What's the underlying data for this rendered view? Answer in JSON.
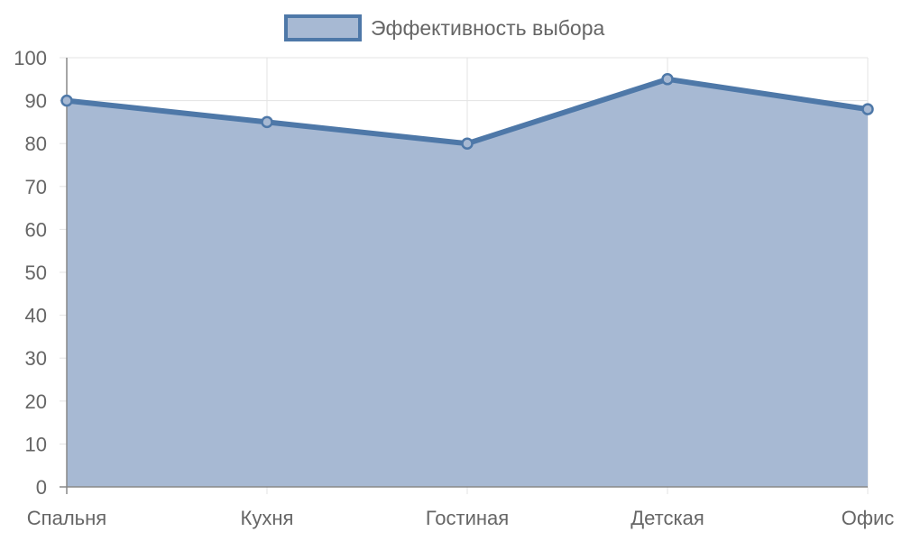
{
  "chart_data": {
    "type": "area",
    "categories": [
      "Спальня",
      "Кухня",
      "Гостиная",
      "Детская",
      "Офис"
    ],
    "series": [
      {
        "name": "Эффективность выбора",
        "values": [
          90,
          85,
          80,
          95,
          88
        ],
        "line_color": "#4e78a8",
        "fill_color": "#a7b9d3"
      }
    ],
    "ylim": [
      0,
      100
    ],
    "yticks": [
      "0",
      "10",
      "20",
      "30",
      "40",
      "50",
      "60",
      "70",
      "80",
      "90",
      "100"
    ],
    "grid": true,
    "legend": "top-center"
  }
}
